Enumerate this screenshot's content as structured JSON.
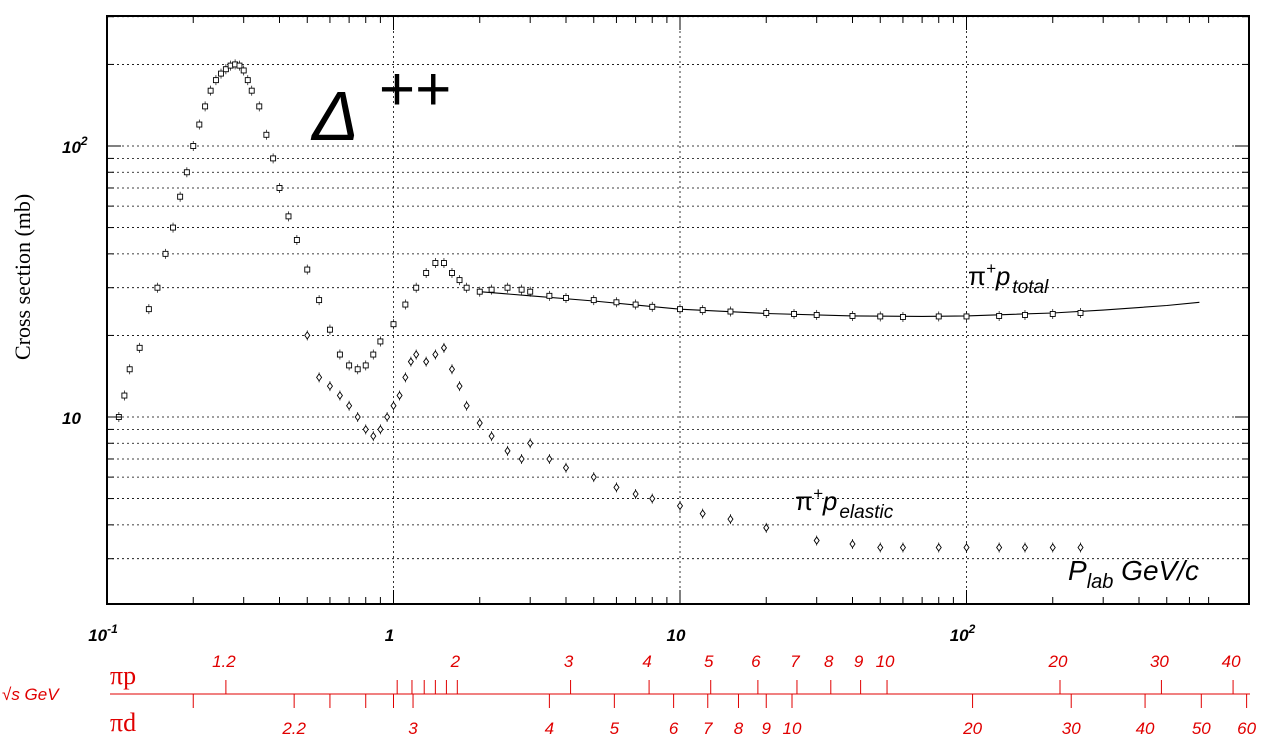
{
  "chart_data": {
    "type": "scatter",
    "title": "",
    "xlabel": "P_lab GeV/c",
    "ylabel": "Cross section (mb)",
    "x_scale": "log",
    "y_scale": "log",
    "xlim": [
      0.1,
      700
    ],
    "ylim": [
      3,
      300
    ],
    "grid": true,
    "x_tick_labels": [
      {
        "value": 0.1,
        "base": "10",
        "exp": "-1"
      },
      {
        "value": 1,
        "base": "1",
        "exp": ""
      },
      {
        "value": 10,
        "base": "10",
        "exp": ""
      },
      {
        "value": 100,
        "base": "10",
        "exp": "2"
      }
    ],
    "y_tick_labels": [
      {
        "value": 10,
        "base": "10",
        "exp": ""
      },
      {
        "value": 100,
        "base": "10",
        "exp": "2"
      }
    ],
    "annotations": {
      "resonance": {
        "symbol": "Δ",
        "sup": "++"
      },
      "total": {
        "base": "π",
        "sup": "+",
        "mid": "p",
        "sub": "total"
      },
      "elastic": {
        "base": "π",
        "sup": "+",
        "mid": "p",
        "sub": "elastic"
      },
      "plab": {
        "main": "P",
        "sub": "lab",
        "rest": " GeV/c"
      }
    },
    "series": [
      {
        "name": "total",
        "marker": "square",
        "points": [
          [
            0.11,
            10
          ],
          [
            0.115,
            12
          ],
          [
            0.12,
            15
          ],
          [
            0.13,
            18
          ],
          [
            0.14,
            25
          ],
          [
            0.15,
            30
          ],
          [
            0.16,
            40
          ],
          [
            0.17,
            50
          ],
          [
            0.18,
            65
          ],
          [
            0.19,
            80
          ],
          [
            0.2,
            100
          ],
          [
            0.21,
            120
          ],
          [
            0.22,
            140
          ],
          [
            0.23,
            160
          ],
          [
            0.24,
            175
          ],
          [
            0.25,
            185
          ],
          [
            0.26,
            192
          ],
          [
            0.27,
            198
          ],
          [
            0.28,
            200
          ],
          [
            0.29,
            198
          ],
          [
            0.3,
            190
          ],
          [
            0.31,
            175
          ],
          [
            0.32,
            160
          ],
          [
            0.34,
            140
          ],
          [
            0.36,
            110
          ],
          [
            0.38,
            90
          ],
          [
            0.4,
            70
          ],
          [
            0.43,
            55
          ],
          [
            0.46,
            45
          ],
          [
            0.5,
            35
          ],
          [
            0.55,
            27
          ],
          [
            0.6,
            21
          ],
          [
            0.65,
            17
          ],
          [
            0.7,
            15.5
          ],
          [
            0.75,
            15
          ],
          [
            0.8,
            15.5
          ],
          [
            0.85,
            17
          ],
          [
            0.9,
            19
          ],
          [
            1.0,
            22
          ],
          [
            1.1,
            26
          ],
          [
            1.2,
            30
          ],
          [
            1.3,
            34
          ],
          [
            1.4,
            37
          ],
          [
            1.5,
            37
          ],
          [
            1.6,
            34
          ],
          [
            1.7,
            32
          ],
          [
            1.8,
            30
          ],
          [
            2.0,
            29
          ],
          [
            2.2,
            29.5
          ],
          [
            2.5,
            30
          ],
          [
            2.8,
            29.5
          ],
          [
            3.0,
            29
          ],
          [
            3.5,
            28
          ],
          [
            4.0,
            27.5
          ],
          [
            5,
            27
          ],
          [
            6,
            26.5
          ],
          [
            7,
            26
          ],
          [
            8,
            25.5
          ],
          [
            10,
            25
          ],
          [
            12,
            24.8
          ],
          [
            15,
            24.5
          ],
          [
            20,
            24.2
          ],
          [
            25,
            24
          ],
          [
            30,
            23.8
          ],
          [
            40,
            23.6
          ],
          [
            50,
            23.5
          ],
          [
            60,
            23.4
          ],
          [
            80,
            23.5
          ],
          [
            100,
            23.5
          ],
          [
            130,
            23.6
          ],
          [
            160,
            23.8
          ],
          [
            200,
            24
          ],
          [
            250,
            24.2
          ]
        ]
      },
      {
        "name": "elastic",
        "marker": "diamond",
        "points": [
          [
            0.5,
            20
          ],
          [
            0.55,
            14
          ],
          [
            0.6,
            13
          ],
          [
            0.65,
            12
          ],
          [
            0.7,
            11
          ],
          [
            0.75,
            10
          ],
          [
            0.8,
            9
          ],
          [
            0.85,
            8.5
          ],
          [
            0.9,
            9
          ],
          [
            0.95,
            10
          ],
          [
            1.0,
            11
          ],
          [
            1.05,
            12
          ],
          [
            1.1,
            14
          ],
          [
            1.15,
            16
          ],
          [
            1.2,
            17
          ],
          [
            1.3,
            16
          ],
          [
            1.4,
            17
          ],
          [
            1.5,
            18
          ],
          [
            1.6,
            15
          ],
          [
            1.7,
            13
          ],
          [
            1.8,
            11
          ],
          [
            2.0,
            9.5
          ],
          [
            2.2,
            8.5
          ],
          [
            2.5,
            7.5
          ],
          [
            2.8,
            7
          ],
          [
            3.0,
            8
          ],
          [
            3.5,
            7
          ],
          [
            4.0,
            6.5
          ],
          [
            5,
            6
          ],
          [
            6,
            5.5
          ],
          [
            7,
            5.2
          ],
          [
            8,
            5
          ],
          [
            10,
            4.7
          ],
          [
            12,
            4.4
          ],
          [
            15,
            4.2
          ],
          [
            20,
            3.9
          ],
          [
            30,
            3.5
          ],
          [
            40,
            3.4
          ],
          [
            50,
            3.3
          ],
          [
            60,
            3.3
          ],
          [
            80,
            3.3
          ],
          [
            100,
            3.3
          ],
          [
            130,
            3.3
          ],
          [
            160,
            3.3
          ],
          [
            200,
            3.3
          ],
          [
            250,
            3.3
          ]
        ]
      }
    ],
    "fit_curve": [
      [
        2,
        29
      ],
      [
        3,
        28
      ],
      [
        5,
        26.8
      ],
      [
        10,
        25
      ],
      [
        20,
        24.1
      ],
      [
        40,
        23.6
      ],
      [
        70,
        23.5
      ],
      [
        100,
        23.6
      ],
      [
        200,
        24.2
      ],
      [
        300,
        24.8
      ],
      [
        500,
        25.8
      ],
      [
        650,
        26.5
      ]
    ]
  },
  "sqrt_s": {
    "axis_title": "√s GeV",
    "rows": [
      {
        "label": "πp",
        "ticks": [
          {
            "x": 0.26,
            "text": "1.2"
          },
          {
            "x": 1.03,
            "text": ""
          },
          {
            "x": 1.16,
            "text": ""
          },
          {
            "x": 1.28,
            "text": ""
          },
          {
            "x": 1.4,
            "text": ""
          },
          {
            "x": 1.53,
            "text": ""
          },
          {
            "x": 1.67,
            "text": "2"
          },
          {
            "x": 4.15,
            "text": "3"
          },
          {
            "x": 7.8,
            "text": "4"
          },
          {
            "x": 12.8,
            "text": "5"
          },
          {
            "x": 18.7,
            "text": "6"
          },
          {
            "x": 25.6,
            "text": "7"
          },
          {
            "x": 33.6,
            "text": "8"
          },
          {
            "x": 42.7,
            "text": "9"
          },
          {
            "x": 52.8,
            "text": "10"
          },
          {
            "x": 212,
            "text": "20"
          },
          {
            "x": 479,
            "text": "30"
          },
          {
            "x": 852,
            "text": "40"
          }
        ]
      },
      {
        "label": "πd",
        "ticks": [
          {
            "x": 0.2,
            "text": ""
          },
          {
            "x": 0.45,
            "text": "2.2"
          },
          {
            "x": 0.6,
            "text": ""
          },
          {
            "x": 0.8,
            "text": ""
          },
          {
            "x": 1.0,
            "text": ""
          },
          {
            "x": 1.17,
            "text": "3"
          },
          {
            "x": 3.5,
            "text": "4"
          },
          {
            "x": 5.9,
            "text": "5"
          },
          {
            "x": 9.5,
            "text": "6"
          },
          {
            "x": 12.5,
            "text": "7"
          },
          {
            "x": 16,
            "text": "8"
          },
          {
            "x": 20,
            "text": "9"
          },
          {
            "x": 24.6,
            "text": "10"
          },
          {
            "x": 105,
            "text": "20"
          },
          {
            "x": 232,
            "text": "30"
          },
          {
            "x": 420,
            "text": "40"
          },
          {
            "x": 660,
            "text": "50"
          },
          {
            "x": 950,
            "text": "60"
          }
        ]
      }
    ]
  }
}
